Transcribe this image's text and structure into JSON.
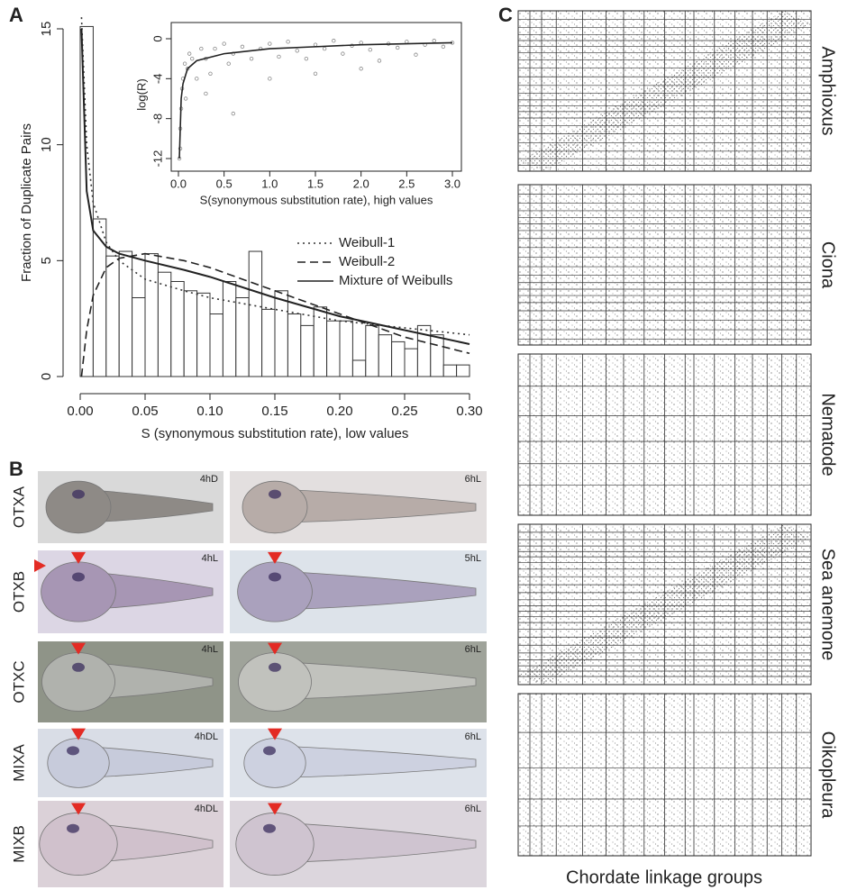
{
  "panel_labels": [
    "A",
    "B",
    "C"
  ],
  "chart_data": [
    {
      "type": "histogram",
      "ylabel": "Fraction of Duplicate Pairs",
      "xlabel": "S (synonymous substitution rate), low values",
      "bins": [
        0,
        0.01,
        0.02,
        0.03,
        0.04,
        0.05,
        0.06,
        0.07,
        0.08,
        0.09,
        0.1,
        0.11,
        0.12,
        0.13,
        0.14,
        0.15,
        0.16,
        0.17,
        0.18,
        0.19,
        0.2,
        0.21,
        0.22,
        0.23,
        0.24,
        0.25,
        0.26,
        0.27,
        0.28,
        0.29,
        0.3
      ],
      "values": [
        15.1,
        6.8,
        5.2,
        5.4,
        3.4,
        5.3,
        4.5,
        4.1,
        3.7,
        3.6,
        2.7,
        4.1,
        3.4,
        5.4,
        2.9,
        3.7,
        2.7,
        2.2,
        3.0,
        2.4,
        2.4,
        0.7,
        2.2,
        1.8,
        1.5,
        1.2,
        2.2,
        1.8,
        0.5,
        0.5
      ],
      "series": [
        {
          "name": "Weibull-1",
          "dash": "dotted",
          "color": "#333333",
          "x": [
            0.001,
            0.005,
            0.01,
            0.02,
            0.03,
            0.05,
            0.08,
            0.1,
            0.15,
            0.2,
            0.25,
            0.3
          ],
          "values": [
            15.5,
            10,
            7.5,
            5.8,
            5.0,
            4.2,
            3.7,
            3.4,
            2.9,
            2.4,
            2.1,
            1.8
          ]
        },
        {
          "name": "Weibull-2",
          "dash": "dashed",
          "color": "#222222",
          "x": [
            0.001,
            0.005,
            0.01,
            0.02,
            0.03,
            0.05,
            0.08,
            0.1,
            0.15,
            0.2,
            0.25,
            0.3
          ],
          "values": [
            0,
            2,
            3.5,
            4.7,
            5.1,
            5.3,
            5.0,
            4.7,
            3.7,
            2.7,
            1.7,
            1.0
          ]
        },
        {
          "name": "Mixture of Weibulls",
          "dash": "solid",
          "color": "#222222",
          "x": [
            0.001,
            0.005,
            0.01,
            0.02,
            0.03,
            0.05,
            0.08,
            0.1,
            0.15,
            0.2,
            0.25,
            0.3
          ],
          "values": [
            15,
            8,
            6.3,
            5.6,
            5.3,
            5.0,
            4.6,
            4.3,
            3.4,
            2.6,
            2.0,
            1.4
          ]
        }
      ],
      "xlim": [
        0,
        0.3
      ],
      "ylim": [
        0,
        15
      ],
      "xticks": [
        {
          "value": 0,
          "label": "0.00"
        },
        0.05,
        {
          "value": 0.1,
          "label": "0.10"
        },
        0.15,
        {
          "value": 0.2,
          "label": "0.20"
        },
        0.25,
        {
          "value": 0.3,
          "label": "0.30"
        }
      ],
      "yticks": [
        0,
        5,
        10,
        15
      ]
    },
    {
      "type": "scatter",
      "ylabel": "log(R)",
      "xlabel": "S(synonymous substitution rate), high values",
      "color": "#8a8a8a",
      "x": [
        0.02,
        0.04,
        0.05,
        0.07,
        0.1,
        0.12,
        0.15,
        0.2,
        0.25,
        0.3,
        0.35,
        0.4,
        0.5,
        0.55,
        0.6,
        0.7,
        0.8,
        0.9,
        1.0,
        1.1,
        1.2,
        1.3,
        1.4,
        1.5,
        1.6,
        1.7,
        1.8,
        1.9,
        2.0,
        2.1,
        2.2,
        2.3,
        2.4,
        2.5,
        2.6,
        2.7,
        2.8,
        2.9,
        3.0,
        0.03,
        0.08,
        0.3,
        0.6,
        1.0,
        1.5,
        2.0,
        0.02,
        0.01
      ],
      "y": [
        -9,
        -5,
        -4,
        -2.5,
        -3,
        -1.5,
        -2,
        -4,
        -1,
        -2,
        -3.5,
        -1,
        -0.5,
        -2.5,
        -1.5,
        -0.8,
        -2,
        -1,
        -0.5,
        -1.8,
        -0.3,
        -1.2,
        -2,
        -0.6,
        -1,
        -0.2,
        -1.5,
        -0.7,
        -0.4,
        -1.1,
        -2.2,
        -0.5,
        -0.9,
        -0.3,
        -1.6,
        -0.6,
        -0.2,
        -0.8,
        -0.4,
        -7,
        -6,
        -5.5,
        -7.5,
        -4,
        -3.5,
        -3,
        -11,
        -12
      ],
      "fit": {
        "x": [
          0.01,
          0.03,
          0.05,
          0.1,
          0.2,
          0.5,
          1,
          1.5,
          2,
          2.5,
          3
        ],
        "values": [
          -12,
          -6,
          -4.5,
          -3,
          -2.2,
          -1.5,
          -1,
          -0.8,
          -0.6,
          -0.5,
          -0.4
        ]
      },
      "xlim": [
        0,
        3
      ],
      "ylim": [
        -12,
        0
      ],
      "xticks": [
        {
          "value": 0,
          "label": "0.0"
        },
        0.5,
        {
          "value": 1,
          "label": "1.0"
        },
        1.5,
        {
          "value": 2,
          "label": "2.0"
        },
        2.5,
        {
          "value": 3,
          "label": "3.0"
        }
      ],
      "yticks": [
        0,
        -4,
        -8,
        -12
      ]
    }
  ],
  "embryo_panel": {
    "rows": [
      {
        "gene": "OTXA",
        "stages": [
          "4hD",
          "6hL"
        ]
      },
      {
        "gene": "OTXB",
        "stages": [
          "4hL",
          "5hL"
        ]
      },
      {
        "gene": "OTXC",
        "stages": [
          "4hL",
          "6hL"
        ]
      },
      {
        "gene": "MIXA",
        "stages": [
          "4hDL",
          "6hL"
        ]
      },
      {
        "gene": "MIXB",
        "stages": [
          "4hDL",
          "6hL"
        ]
      }
    ]
  },
  "linkage_panel": {
    "species": [
      "Amphioxus",
      "Ciona",
      "Nematode",
      "Sea anemone",
      "Oikopleura"
    ],
    "xlabel": "Chordate linkage groups"
  }
}
